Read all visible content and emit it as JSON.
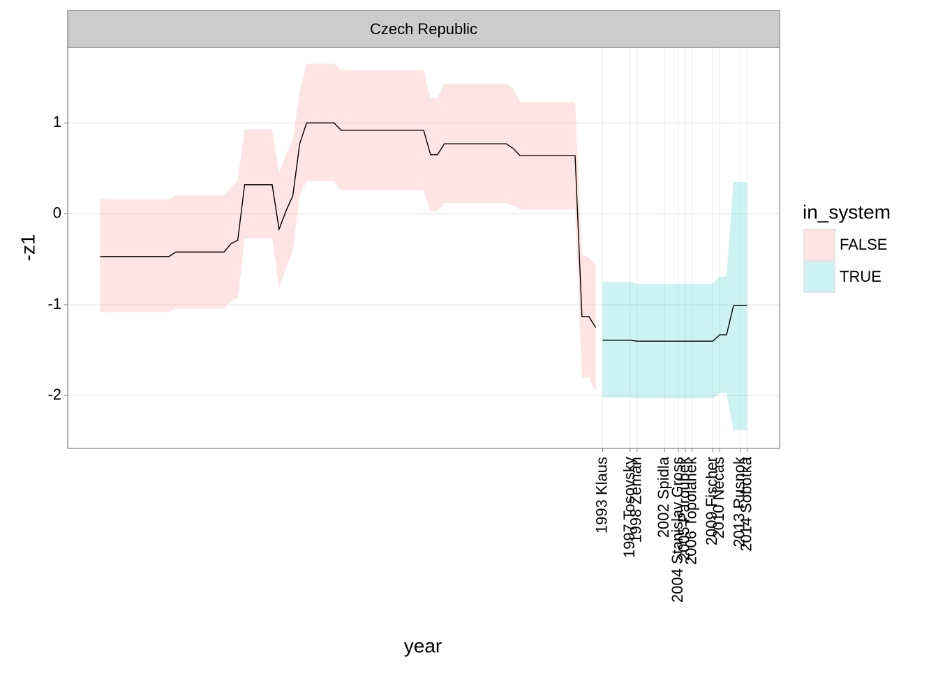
{
  "chart_data": {
    "type": "ribbon-line",
    "strip_title": "Czech Republic",
    "x_label": "year",
    "y_label": "-z1",
    "legend_title": "in_system",
    "xlim": [
      1915.3,
      2018.7
    ],
    "xticks": [
      {
        "value": 1993,
        "label": "1993 Klaus"
      },
      {
        "value": 1997,
        "label": "1997 Tosovsky"
      },
      {
        "value": 1998,
        "label": "1998 Zeman"
      },
      {
        "value": 2002,
        "label": "2002 Spidla"
      },
      {
        "value": 2004,
        "label": "2004 Stanislav Gross"
      },
      {
        "value": 2005,
        "label": "2005 Paroubek"
      },
      {
        "value": 2006,
        "label": "2006 Topolanek"
      },
      {
        "value": 2009,
        "label": "2009 Fischer"
      },
      {
        "value": 2010,
        "label": "2010 Necas"
      },
      {
        "value": 2013,
        "label": "2013 Rusnok"
      },
      {
        "value": 2014,
        "label": "2014 Sobotka"
      }
    ],
    "ylim": [
      -2.58,
      1.83
    ],
    "yticks": [
      -2,
      -1,
      0,
      1
    ],
    "grid": true,
    "alpha": 0.2,
    "series": [
      {
        "name": "FALSE",
        "color": "#F8766D",
        "x": [
          1920,
          1930,
          1931,
          1938,
          1939,
          1940,
          1941,
          1945,
          1946,
          1947,
          1948,
          1949,
          1950,
          1954,
          1955,
          1967,
          1968,
          1969,
          1970,
          1979,
          1980,
          1981,
          1989,
          1990,
          1991,
          1992
        ],
        "values": [
          -0.47,
          -0.47,
          -0.42,
          -0.42,
          -0.33,
          -0.29,
          0.32,
          0.32,
          -0.17,
          0.03,
          0.2,
          0.77,
          1.0,
          1.0,
          0.92,
          0.92,
          0.65,
          0.65,
          0.77,
          0.77,
          0.72,
          0.64,
          0.64,
          -1.13,
          -1.13,
          -1.25
        ],
        "upper": [
          0.16,
          0.16,
          0.2,
          0.2,
          0.29,
          0.37,
          0.93,
          0.93,
          0.45,
          0.65,
          0.8,
          1.35,
          1.65,
          1.65,
          1.58,
          1.58,
          1.27,
          1.27,
          1.43,
          1.43,
          1.38,
          1.23,
          1.23,
          -0.45,
          -0.48,
          -0.56
        ],
        "lower": [
          -1.08,
          -1.08,
          -1.04,
          -1.04,
          -0.95,
          -0.93,
          -0.27,
          -0.27,
          -0.81,
          -0.6,
          -0.4,
          0.2,
          0.36,
          0.36,
          0.26,
          0.26,
          0.03,
          0.03,
          0.12,
          0.12,
          0.09,
          0.05,
          0.05,
          -1.8,
          -1.8,
          -1.95
        ]
      },
      {
        "name": "TRUE",
        "color": "#00BFC4",
        "x": [
          1993,
          1997,
          1998,
          2009,
          2010,
          2011,
          2012,
          2014
        ],
        "values": [
          -1.39,
          -1.39,
          -1.4,
          -1.4,
          -1.33,
          -1.33,
          -1.01,
          -1.01
        ],
        "upper": [
          -0.75,
          -0.75,
          -0.77,
          -0.77,
          -0.69,
          -0.69,
          0.35,
          0.35
        ],
        "lower": [
          -2.02,
          -2.02,
          -2.03,
          -2.03,
          -1.97,
          -1.97,
          -2.38,
          -2.38
        ]
      }
    ]
  }
}
